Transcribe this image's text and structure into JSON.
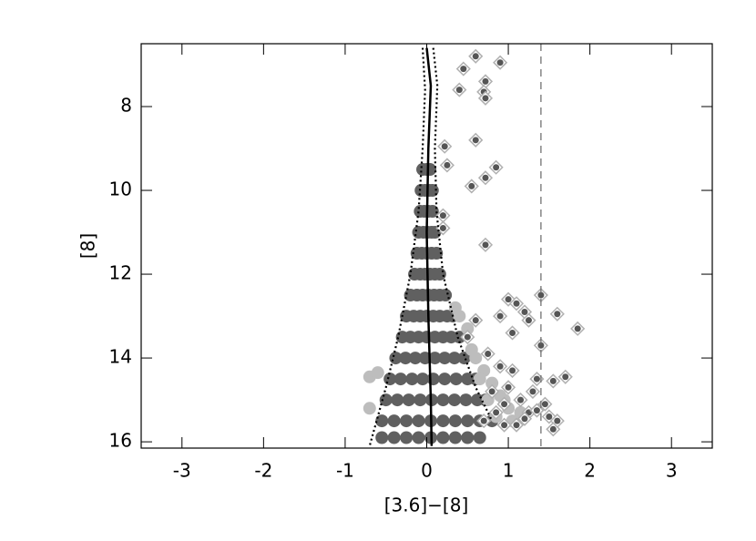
{
  "chart_data": {
    "type": "scatter",
    "xlabel": "[3.6]−[8]",
    "ylabel": "[8]",
    "xlim": [
      -3.5,
      3.5
    ],
    "ylim": [
      6.5,
      16.15
    ],
    "y_inverted": true,
    "xticks": [
      -3,
      -2,
      -1,
      0,
      1,
      2,
      3
    ],
    "yticks": [
      8,
      10,
      12,
      14,
      16
    ],
    "series": [
      {
        "marker": "circle",
        "color": "#606060",
        "x": [
          -0.05,
          0,
          0.04,
          -0.07,
          -0.02,
          0.03,
          0.07,
          -0.08,
          -0.03,
          0.02,
          0.07,
          -0.1,
          -0.04,
          0.01,
          0.06,
          0.1,
          -0.12,
          -0.06,
          0,
          0.06,
          0.12,
          -0.15,
          -0.08,
          -0.02,
          0.04,
          0.1,
          0.16,
          -0.2,
          -0.12,
          -0.05,
          0.02,
          0.09,
          0.16,
          0.23,
          -0.25,
          -0.16,
          -0.08,
          0,
          0.08,
          0.16,
          0.25,
          0.32,
          -0.3,
          -0.2,
          -0.1,
          0,
          0.1,
          0.2,
          0.3,
          0.4,
          -0.38,
          -0.26,
          -0.14,
          -0.02,
          0.1,
          0.22,
          0.34,
          0.46,
          -0.45,
          -0.32,
          -0.18,
          -0.05,
          0.08,
          0.22,
          0.36,
          0.5,
          0.6,
          -0.5,
          -0.36,
          -0.22,
          -0.08,
          0.06,
          0.2,
          0.34,
          0.48,
          0.62,
          0.72,
          -0.55,
          -0.4,
          -0.25,
          -0.1,
          0.05,
          0.2,
          0.35,
          0.5,
          0.65,
          0.8,
          -0.55,
          -0.4,
          -0.25,
          -0.1,
          0.05,
          0.2,
          0.35,
          0.5,
          0.65
        ],
        "values": [
          9.5,
          9.5,
          9.5,
          10,
          10,
          10,
          10,
          10.5,
          10.5,
          10.5,
          10.5,
          11,
          11,
          11,
          11,
          11,
          11.5,
          11.5,
          11.5,
          11.5,
          11.5,
          12,
          12,
          12,
          12,
          12,
          12,
          12.5,
          12.5,
          12.5,
          12.5,
          12.5,
          12.5,
          12.5,
          13,
          13,
          13,
          13,
          13,
          13,
          13,
          13,
          13.5,
          13.5,
          13.5,
          13.5,
          13.5,
          13.5,
          13.5,
          13.5,
          14,
          14,
          14,
          14,
          14,
          14,
          14,
          14,
          14.5,
          14.5,
          14.5,
          14.5,
          14.5,
          14.5,
          14.5,
          14.5,
          14.5,
          15,
          15,
          15,
          15,
          15,
          15,
          15,
          15,
          15,
          15,
          15.5,
          15.5,
          15.5,
          15.5,
          15.5,
          15.5,
          15.5,
          15.5,
          15.5,
          15.5,
          15.9,
          15.9,
          15.9,
          15.9,
          15.9,
          15.9,
          15.9,
          15.9,
          15.9
        ]
      },
      {
        "marker": "circle",
        "color": "#bdbdbd",
        "x": [
          -0.7,
          -0.6,
          -0.7,
          0.6,
          0.7,
          0.8,
          0.9,
          1.0,
          0.85,
          1.05,
          0.65,
          0.75,
          0.55,
          0.5,
          0.95,
          1.15,
          0.35,
          0.4
        ],
        "values": [
          14.45,
          14.35,
          15.2,
          14.0,
          14.3,
          14.6,
          14.9,
          15.2,
          15.4,
          15.5,
          14.5,
          15.0,
          13.8,
          13.3,
          15.0,
          15.3,
          12.8,
          13.0
        ]
      },
      {
        "marker": "diamond",
        "color": "#555555",
        "x": [
          0.6,
          0.9,
          0.45,
          0.72,
          0.4,
          0.7,
          0.72,
          0.6,
          0.22,
          0.25,
          0.85,
          0.72,
          0.55,
          0.2,
          0.2,
          0.72,
          1.0,
          1.1,
          1.4,
          1.2,
          1.6,
          1.85,
          0.9,
          1.05,
          1.25,
          0.6,
          0.5,
          0.75,
          1.4,
          0.9,
          1.05,
          1.35,
          1.7,
          1.55,
          1.0,
          0.8,
          1.15,
          1.3,
          0.95,
          1.25,
          1.5,
          1.6,
          1.1,
          0.7,
          0.85,
          1.35,
          1.45,
          1.55,
          1.2,
          0.95
        ],
        "values": [
          6.8,
          6.95,
          7.1,
          7.4,
          7.6,
          7.65,
          7.8,
          8.8,
          8.95,
          9.4,
          9.45,
          9.7,
          9.9,
          10.6,
          10.9,
          11.3,
          12.6,
          12.7,
          12.5,
          12.9,
          12.95,
          13.3,
          13.0,
          13.4,
          13.1,
          13.1,
          13.5,
          13.9,
          13.7,
          14.2,
          14.3,
          14.5,
          14.45,
          14.55,
          14.7,
          14.8,
          15.0,
          14.8,
          15.1,
          15.3,
          15.4,
          15.5,
          15.6,
          15.5,
          15.3,
          15.25,
          15.1,
          15.7,
          15.45,
          15.6
        ]
      }
    ],
    "lines": [
      {
        "style": "solid",
        "color": "#000000",
        "x": [
          0.0,
          0.05,
          0.02,
          0.0,
          0.02,
          0.05,
          0.06
        ],
        "values": [
          6.6,
          7.5,
          9,
          11,
          13,
          15,
          16.1
        ]
      },
      {
        "style": "dotted",
        "color": "#000000",
        "x": [
          -0.05,
          -0.02,
          -0.05,
          -0.1,
          -0.2,
          -0.35,
          -0.5,
          -0.7
        ],
        "values": [
          6.6,
          7.6,
          9,
          10.5,
          12,
          13.5,
          14.7,
          16.1
        ]
      },
      {
        "style": "dotted",
        "color": "#000000",
        "x": [
          0.08,
          0.13,
          0.1,
          0.12,
          0.2,
          0.38,
          0.6,
          0.8
        ],
        "values": [
          6.6,
          7.5,
          9,
          10.5,
          12,
          13.5,
          14.7,
          15.5
        ]
      },
      {
        "style": "dashed",
        "color": "#666666",
        "x": [
          1.4,
          1.4
        ],
        "values": [
          6.5,
          16.15
        ]
      }
    ]
  }
}
